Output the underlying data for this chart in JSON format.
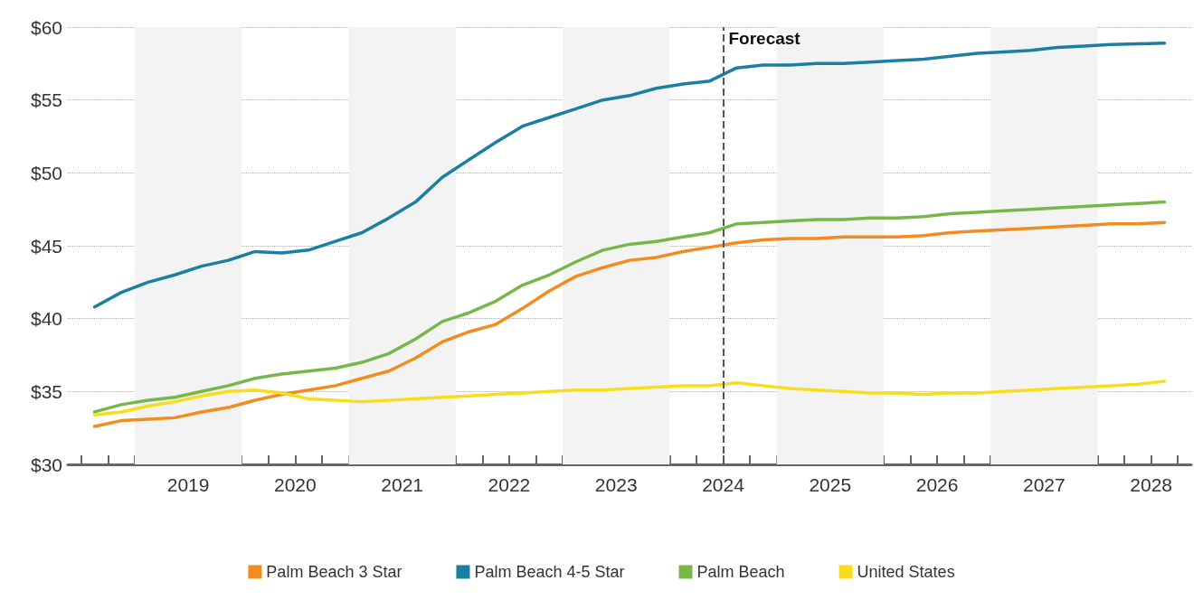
{
  "chart_data": {
    "type": "line",
    "x": [
      2018.625,
      2018.875,
      2019.125,
      2019.375,
      2019.625,
      2019.875,
      2020.125,
      2020.375,
      2020.625,
      2020.875,
      2021.125,
      2021.375,
      2021.625,
      2021.875,
      2022.125,
      2022.375,
      2022.625,
      2022.875,
      2023.125,
      2023.375,
      2023.625,
      2023.875,
      2024.125,
      2024.375,
      2024.625,
      2024.875,
      2025.125,
      2025.375,
      2025.625,
      2025.875,
      2026.125,
      2026.375,
      2026.625,
      2026.875,
      2027.125,
      2027.375,
      2027.625,
      2027.875,
      2028.125,
      2028.375,
      2028.625
    ],
    "series": [
      {
        "name": "Palm Beach 3 Star",
        "color": "#f28c1e",
        "values": [
          32.6,
          33.0,
          33.1,
          33.2,
          33.6,
          33.9,
          34.4,
          34.8,
          35.1,
          35.4,
          35.9,
          36.4,
          37.3,
          38.4,
          39.1,
          39.6,
          40.7,
          41.9,
          42.9,
          43.5,
          44.0,
          44.2,
          44.6,
          44.9,
          45.2,
          45.4,
          45.5,
          45.5,
          45.6,
          45.6,
          45.6,
          45.7,
          45.9,
          46.0,
          46.1,
          46.2,
          46.3,
          46.4,
          46.5,
          46.5,
          46.6
        ]
      },
      {
        "name": "Palm Beach 4-5 Star",
        "color": "#1a7fa0",
        "values": [
          40.8,
          41.8,
          42.5,
          43.0,
          43.6,
          44.0,
          44.6,
          44.5,
          44.7,
          45.3,
          45.9,
          46.9,
          48.0,
          49.7,
          50.9,
          52.1,
          53.2,
          53.8,
          54.4,
          55.0,
          55.3,
          55.8,
          56.1,
          56.3,
          57.2,
          57.4,
          57.4,
          57.5,
          57.5,
          57.6,
          57.7,
          57.8,
          58.0,
          58.2,
          58.3,
          58.4,
          58.6,
          58.7,
          58.8,
          58.85,
          58.9
        ]
      },
      {
        "name": "Palm Beach",
        "color": "#77b74a",
        "values": [
          33.6,
          34.1,
          34.4,
          34.6,
          35.0,
          35.4,
          35.9,
          36.2,
          36.4,
          36.6,
          37.0,
          37.6,
          38.6,
          39.8,
          40.4,
          41.2,
          42.3,
          43.0,
          43.9,
          44.7,
          45.1,
          45.3,
          45.6,
          45.9,
          46.5,
          46.6,
          46.7,
          46.8,
          46.8,
          46.9,
          46.9,
          47.0,
          47.2,
          47.3,
          47.4,
          47.5,
          47.6,
          47.7,
          47.8,
          47.9,
          48.0
        ]
      },
      {
        "name": "United States",
        "color": "#f9dc1c",
        "values": [
          33.4,
          33.6,
          34.0,
          34.3,
          34.7,
          35.0,
          35.1,
          34.9,
          34.5,
          34.4,
          34.3,
          34.4,
          34.5,
          34.6,
          34.7,
          34.8,
          34.9,
          35.0,
          35.1,
          35.1,
          35.2,
          35.3,
          35.4,
          35.4,
          35.6,
          35.4,
          35.2,
          35.1,
          35.0,
          34.9,
          34.9,
          34.8,
          34.9,
          34.9,
          35.0,
          35.1,
          35.2,
          35.3,
          35.4,
          35.5,
          35.7
        ]
      }
    ],
    "xlim": [
      2018.375,
      2028.875
    ],
    "xticks": [
      {
        "value": 2018.5,
        "label": null
      },
      {
        "value": 2018.75,
        "label": null
      },
      {
        "value": 2019,
        "label": null
      },
      {
        "value": 2019.25,
        "label": null
      },
      {
        "value": 2019.5,
        "label": "2019"
      },
      {
        "value": 2019.75,
        "label": null
      },
      {
        "value": 2020,
        "label": null
      },
      {
        "value": 2020.25,
        "label": null
      },
      {
        "value": 2020.5,
        "label": "2020"
      },
      {
        "value": 2020.75,
        "label": null
      },
      {
        "value": 2021,
        "label": null
      },
      {
        "value": 2021.25,
        "label": null
      },
      {
        "value": 2021.5,
        "label": "2021"
      },
      {
        "value": 2021.75,
        "label": null
      },
      {
        "value": 2022,
        "label": null
      },
      {
        "value": 2022.25,
        "label": null
      },
      {
        "value": 2022.5,
        "label": "2022"
      },
      {
        "value": 2022.75,
        "label": null
      },
      {
        "value": 2023,
        "label": null
      },
      {
        "value": 2023.25,
        "label": null
      },
      {
        "value": 2023.5,
        "label": "2023"
      },
      {
        "value": 2023.75,
        "label": null
      },
      {
        "value": 2024,
        "label": null
      },
      {
        "value": 2024.25,
        "label": null
      },
      {
        "value": 2024.5,
        "label": "2024"
      },
      {
        "value": 2024.75,
        "label": null
      },
      {
        "value": 2025,
        "label": null
      },
      {
        "value": 2025.25,
        "label": null
      },
      {
        "value": 2025.5,
        "label": "2025"
      },
      {
        "value": 2025.75,
        "label": null
      },
      {
        "value": 2026,
        "label": null
      },
      {
        "value": 2026.25,
        "label": null
      },
      {
        "value": 2026.5,
        "label": "2026"
      },
      {
        "value": 2026.75,
        "label": null
      },
      {
        "value": 2027,
        "label": null
      },
      {
        "value": 2027.25,
        "label": null
      },
      {
        "value": 2027.5,
        "label": "2027"
      },
      {
        "value": 2027.75,
        "label": null
      },
      {
        "value": 2028,
        "label": null
      },
      {
        "value": 2028.25,
        "label": null
      },
      {
        "value": 2028.5,
        "label": "2028"
      },
      {
        "value": 2028.75,
        "label": null
      }
    ],
    "ylim": [
      30,
      60
    ],
    "yticks": [
      {
        "value": 30,
        "label": "$30"
      },
      {
        "value": 35,
        "label": "$35"
      },
      {
        "value": 40,
        "label": "$40"
      },
      {
        "value": 45,
        "label": "$45"
      },
      {
        "value": 50,
        "label": "$50"
      },
      {
        "value": 55,
        "label": "$55"
      },
      {
        "value": 60,
        "label": "$60"
      }
    ],
    "grid": "y",
    "legend": "bottom",
    "marker": "none",
    "line_style": "solid",
    "ref_lines": [
      {
        "axis": "x",
        "value": 2024.5,
        "label": "Forecast",
        "color": "#555555",
        "line_style": "dashed"
      }
    ],
    "bands": [
      {
        "axis": "x",
        "from": 2019,
        "to": 2020,
        "color": "#f3f3f3"
      },
      {
        "axis": "x",
        "from": 2021,
        "to": 2022,
        "color": "#f3f3f3"
      },
      {
        "axis": "x",
        "from": 2023,
        "to": 2024,
        "color": "#f3f3f3"
      },
      {
        "axis": "x",
        "from": 2025,
        "to": 2026,
        "color": "#f3f3f3"
      },
      {
        "axis": "x",
        "from": 2027,
        "to": 2028,
        "color": "#f3f3f3"
      }
    ]
  }
}
